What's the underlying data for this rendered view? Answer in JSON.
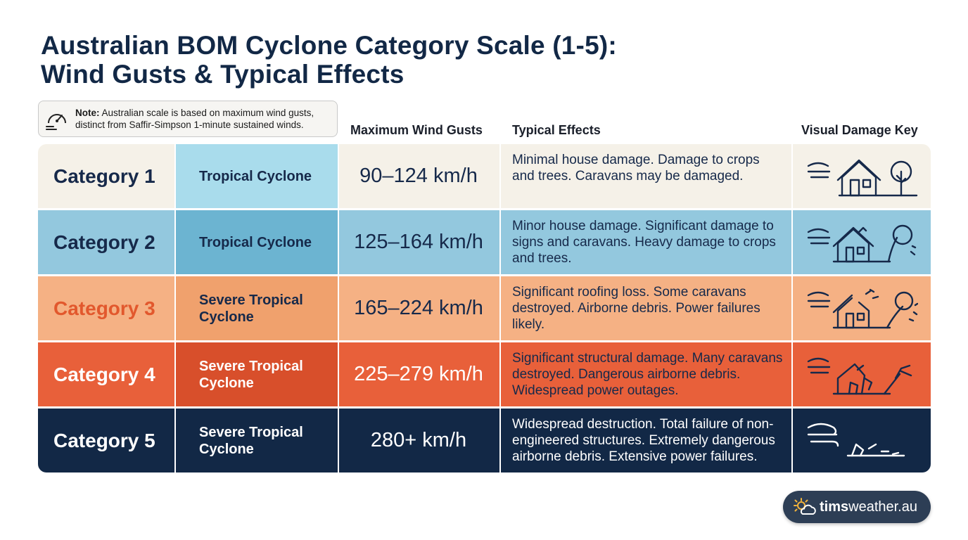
{
  "title": {
    "line1": "Australian BOM Cyclone Category Scale (1-5):",
    "line2": "Wind Gusts & Typical Effects"
  },
  "note": {
    "label": "Note:",
    "text_line1": " Australian scale is based on maximum wind gusts,",
    "text_line2": "distinct from Saffir-Simpson 1-minute sustained winds.",
    "icon": "gauge-icon"
  },
  "columns": {
    "gusts": "Maximum Wind Gusts",
    "effects": "Typical Effects",
    "damage_key": "Visual Damage Key"
  },
  "rows": [
    {
      "category": "Category 1",
      "type": "Tropical Cyclone",
      "gusts": "90–124 km/h",
      "effects": "Minimal house damage. Damage to crops and trees. Caravans may be damaged.",
      "icon": "house-tree-wind-icon",
      "colors": {
        "c1": "#f5f1e8",
        "c2": "#a9dcec",
        "c3": "#f5f1e8",
        "c4": "#f5f1e8",
        "c5": "#f5f1e8",
        "cat_text": "#16294a",
        "type_text": "#16294a",
        "gust_text": "#16294a",
        "eff_text": "#16294a",
        "icon_stroke": "#16294a"
      }
    },
    {
      "category": "Category 2",
      "type": "Tropical Cyclone",
      "gusts": "125–164 km/h",
      "effects": "Minor house damage. Significant damage to signs and caravans. Heavy damage to crops and trees.",
      "icon": "house-bent-tree-wind-icon",
      "colors": {
        "c1": "#93c8de",
        "c2": "#6cb4d1",
        "c3": "#93c8de",
        "c4": "#93c8de",
        "c5": "#93c8de",
        "cat_text": "#16294a",
        "type_text": "#16294a",
        "gust_text": "#16294a",
        "eff_text": "#16294a",
        "icon_stroke": "#16294a"
      }
    },
    {
      "category": "Category 3",
      "type": "Severe Tropical Cyclone",
      "gusts": "165–224 km/h",
      "effects": "Significant roofing loss. Some caravans destroyed. Airborne debris. Power failures likely.",
      "icon": "roof-loss-debris-icon",
      "colors": {
        "c1": "#f5b184",
        "c2": "#f0a16d",
        "c3": "#f5b184",
        "c4": "#f5b184",
        "c5": "#f5b184",
        "cat_text": "#e2582d",
        "type_text": "#16294a",
        "gust_text": "#16294a",
        "eff_text": "#16294a",
        "icon_stroke": "#16294a"
      }
    },
    {
      "category": "Category 4",
      "type": "Severe Tropical Cyclone",
      "gusts": "225–279 km/h",
      "effects": "Significant structural damage. Many caravans destroyed. Dangerous airborne debris. Widespread power outages.",
      "icon": "collapsing-house-icon",
      "colors": {
        "c1": "#e8603a",
        "c2": "#d84f2b",
        "c3": "#e8603a",
        "c4": "#e8603a",
        "c5": "#e8603a",
        "cat_text": "#ffffff",
        "type_text": "#ffffff",
        "gust_text": "#ffffff",
        "eff_text": "#16294a",
        "icon_stroke": "#16294a"
      }
    },
    {
      "category": "Category 5",
      "type": "Severe Tropical Cyclone",
      "gusts": "280+ km/h",
      "effects": "Widespread destruction. Total failure of non-engineered structures. Extremely dangerous airborne debris. Extensive power failures.",
      "icon": "destroyed-rubble-icon",
      "colors": {
        "c1": "#122846",
        "c2": "#122846",
        "c3": "#122846",
        "c4": "#122846",
        "c5": "#122846",
        "cat_text": "#ffffff",
        "type_text": "#ffffff",
        "gust_text": "#ffffff",
        "eff_text": "#ffffff",
        "icon_stroke": "#ffffff"
      }
    }
  ],
  "footer": {
    "brand_bold": "tims",
    "brand_rest": "weather.au",
    "icon": "sun-cloud-icon"
  }
}
